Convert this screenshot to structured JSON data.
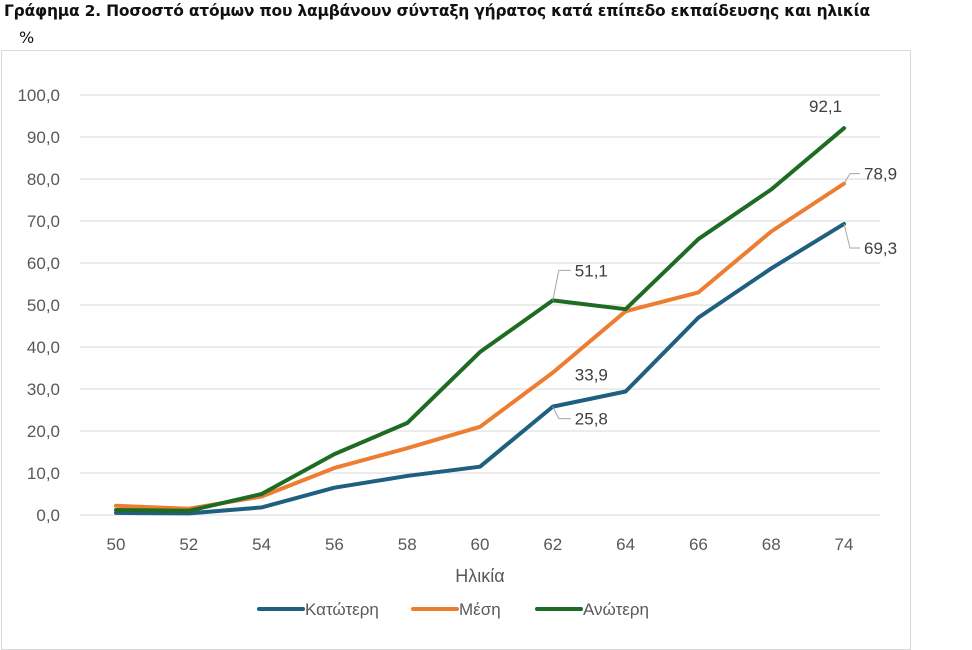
{
  "chart_data": {
    "type": "line",
    "title": "Γράφημα 2. Ποσοστό ατόμων που λαμβάνουν σύνταξη γήρατος κατά επίπεδο εκπαίδευσης και ηλικία",
    "unit": "%",
    "xlabel": "Ηλικία",
    "ylabel": "",
    "x": [
      50,
      52,
      54,
      56,
      58,
      60,
      62,
      64,
      66,
      68,
      74
    ],
    "x_tick_labels": [
      "50",
      "52",
      "54",
      "56",
      "58",
      "60",
      "62",
      "64",
      "66",
      "68",
      "74"
    ],
    "ylim": [
      0,
      100
    ],
    "y_ticks": [
      0,
      10,
      20,
      30,
      40,
      50,
      60,
      70,
      80,
      90,
      100
    ],
    "y_tick_labels": [
      "0,0",
      "10,0",
      "20,0",
      "30,0",
      "40,0",
      "50,0",
      "60,0",
      "70,0",
      "80,0",
      "90,0",
      "100,0"
    ],
    "grid": true,
    "legend_position": "bottom",
    "series": [
      {
        "name": "Κατώτερη",
        "color": "#1f5f7f",
        "values": [
          0.5,
          0.4,
          1.8,
          6.5,
          9.3,
          11.5,
          25.8,
          29.4,
          47.0,
          58.7,
          69.3
        ],
        "data_labels": [
          {
            "index": 6,
            "text": "25,8"
          },
          {
            "index": 10,
            "text": "69,3"
          }
        ]
      },
      {
        "name": "Μέση",
        "color": "#ed7d31",
        "values": [
          2.2,
          1.5,
          4.4,
          11.2,
          15.9,
          21.0,
          33.9,
          48.5,
          53.0,
          67.5,
          78.9
        ],
        "data_labels": [
          {
            "index": 6,
            "text": "33,9"
          },
          {
            "index": 10,
            "text": "78,9"
          }
        ]
      },
      {
        "name": "Ανώτερη",
        "color": "#1e6b23",
        "values": [
          1.2,
          1.0,
          5.0,
          14.5,
          21.9,
          38.8,
          51.1,
          49.0,
          65.7,
          77.5,
          92.1
        ],
        "data_labels": [
          {
            "index": 6,
            "text": "51,1"
          },
          {
            "index": 10,
            "text": "92,1"
          }
        ]
      }
    ]
  }
}
